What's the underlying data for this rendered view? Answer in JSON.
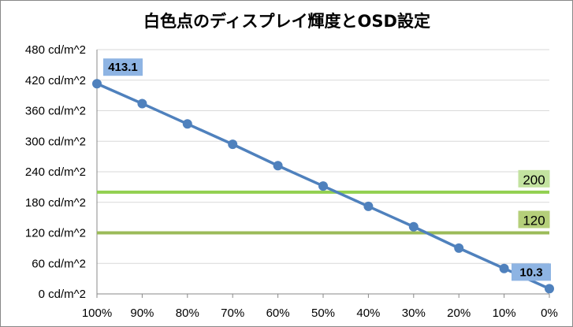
{
  "chart_data": {
    "type": "line",
    "title": "白色点のディスプレイ輝度とOSD設定",
    "x_categories": [
      "100%",
      "90%",
      "80%",
      "70%",
      "60%",
      "50%",
      "40%",
      "30%",
      "20%",
      "10%",
      "0%"
    ],
    "y_ticks": [
      "0 cd/m^2",
      "60 cd/m^2",
      "120 cd/m^2",
      "180 cd/m^2",
      "240 cd/m^2",
      "300 cd/m^2",
      "360 cd/m^2",
      "420 cd/m^2",
      "480 cd/m^2"
    ],
    "ylim": [
      0,
      480
    ],
    "grid": true,
    "series": [
      {
        "values": [
          413.1,
          374,
          334,
          294,
          252,
          212,
          172,
          132,
          90,
          50,
          10.3
        ],
        "color": "#4f81bd"
      }
    ],
    "reference_lines": [
      {
        "value": 200,
        "label": "200",
        "color": "#92d050",
        "label_bg": "#c3e3a0"
      },
      {
        "value": 120,
        "label": "120",
        "color": "#9bbb59",
        "label_bg": "#b5cf7a"
      }
    ],
    "data_labels": [
      {
        "index": 0,
        "text": "413.1",
        "bg": "#8eb4e3"
      },
      {
        "index": 10,
        "text": "10.3",
        "bg": "#8eb4e3"
      }
    ],
    "colors": {
      "grid": "#d9d9d9",
      "axis": "#888888",
      "border": "#888888"
    }
  }
}
